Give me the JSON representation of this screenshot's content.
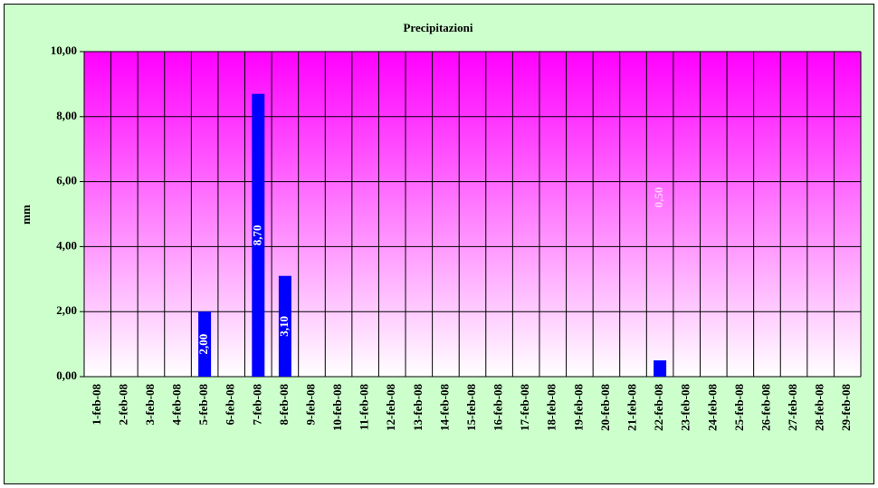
{
  "chart_data": {
    "type": "bar",
    "title": "Precipitazioni",
    "y_label": "mm",
    "categories": [
      "1-feb-08",
      "2-feb-08",
      "3-feb-08",
      "4-feb-08",
      "5-feb-08",
      "6-feb-08",
      "7-feb-08",
      "8-feb-08",
      "9-feb-08",
      "10-feb-08",
      "11-feb-08",
      "12-feb-08",
      "13-feb-08",
      "14-feb-08",
      "15-feb-08",
      "16-feb-08",
      "17-feb-08",
      "18-feb-08",
      "19-feb-08",
      "20-feb-08",
      "21-feb-08",
      "22-feb-08",
      "23-feb-08",
      "24-feb-08",
      "25-feb-08",
      "26-feb-08",
      "27-feb-08",
      "28-feb-08",
      "29-feb-08"
    ],
    "values": [
      null,
      null,
      null,
      null,
      2.0,
      null,
      8.7,
      3.1,
      null,
      null,
      null,
      null,
      null,
      null,
      null,
      null,
      null,
      null,
      null,
      null,
      null,
      0.5,
      null,
      null,
      null,
      null,
      null,
      null,
      null
    ],
    "value_labels": [
      null,
      null,
      null,
      null,
      "2,00",
      null,
      "8,70",
      "3,10",
      null,
      null,
      null,
      null,
      null,
      null,
      null,
      null,
      null,
      null,
      null,
      null,
      null,
      "0,50",
      null,
      null,
      null,
      null,
      null,
      null,
      null
    ],
    "color": "#0000ff",
    "ylim": [
      0,
      10
    ],
    "yticks": [
      {
        "value": 0,
        "label": "0,00"
      },
      {
        "value": 2,
        "label": "2,00"
      },
      {
        "value": 4,
        "label": "4,00"
      },
      {
        "value": 6,
        "label": "6,00"
      },
      {
        "value": 8,
        "label": "8,00"
      },
      {
        "value": 10,
        "label": "10,00"
      }
    ],
    "grid": true
  }
}
